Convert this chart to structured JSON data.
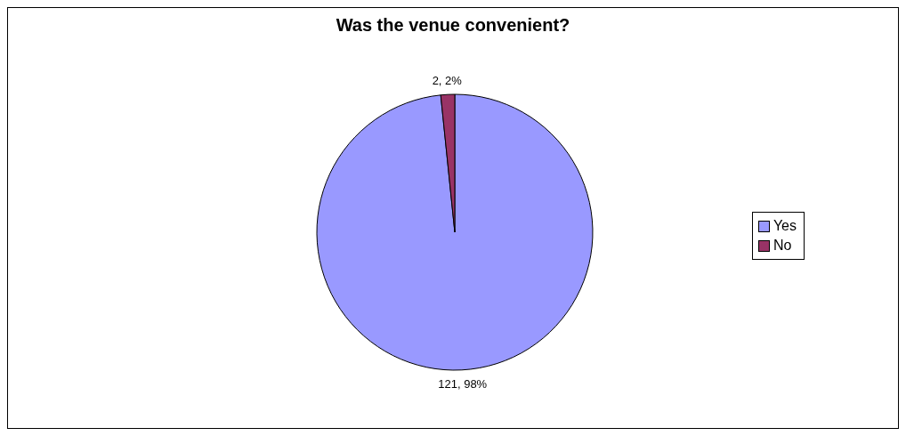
{
  "chart_data": {
    "type": "pie",
    "title": "Was the venue convenient?",
    "categories": [
      "Yes",
      "No"
    ],
    "values": [
      121,
      2
    ],
    "colors": [
      "#9999ff",
      "#993366"
    ],
    "value_labels": [
      "121, 98%",
      "2, 2%"
    ],
    "legend": "right"
  }
}
